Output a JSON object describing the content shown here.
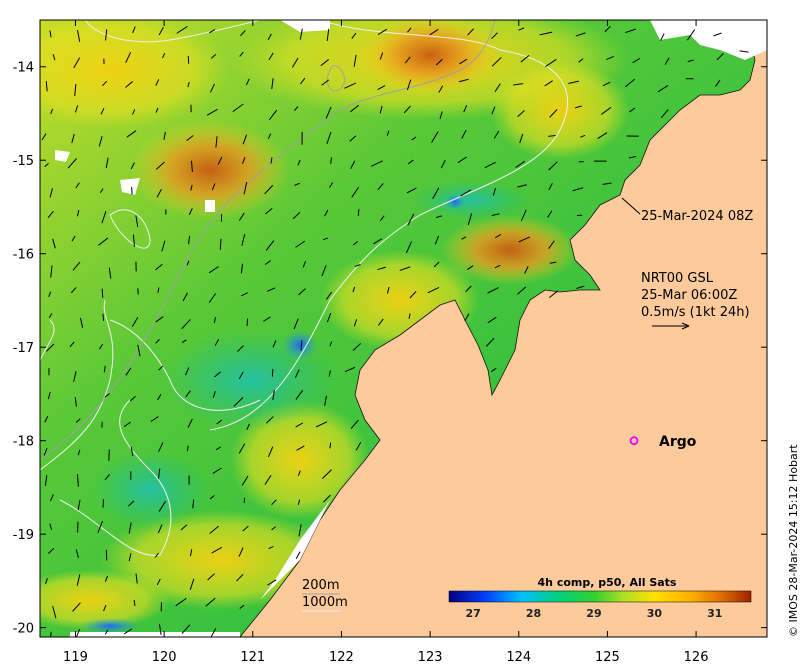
{
  "map": {
    "lon_range": [
      118.6,
      126.8
    ],
    "lat_range": [
      -20.1,
      -13.5
    ],
    "lon_ticks": [
      119,
      120,
      121,
      122,
      123,
      124,
      125,
      126
    ],
    "lat_ticks": [
      -14,
      -15,
      -16,
      -17,
      -18,
      -19,
      -20
    ],
    "land_color": "#fdcb9b",
    "no_data_color": "#ffffff"
  },
  "annotations": {
    "image_time": "25-Mar-2024 08Z",
    "current_source": "NRT00 GSL",
    "current_time": "25-Mar 06:00Z",
    "current_scale": "0.5m/s (1kt 24h)"
  },
  "argo": {
    "label": "Argo",
    "lon": 125.3,
    "lat": -18.0,
    "color": "#ff00ff"
  },
  "isobaths": {
    "label_200": "200m",
    "label_1000": "1000m"
  },
  "colorbar": {
    "title": "4h comp, p50, All Sats",
    "ticks": [
      "27",
      "28",
      "29",
      "30",
      "31"
    ],
    "range": [
      26.6,
      31.6
    ],
    "colors": [
      "#000080",
      "#0040ff",
      "#00c0ff",
      "#00d080",
      "#30d030",
      "#b0e020",
      "#ffe000",
      "#ffb000",
      "#e07000",
      "#a02000"
    ]
  },
  "copyright": "© IMOS 28-Mar-2024 15:12 Hobart"
}
